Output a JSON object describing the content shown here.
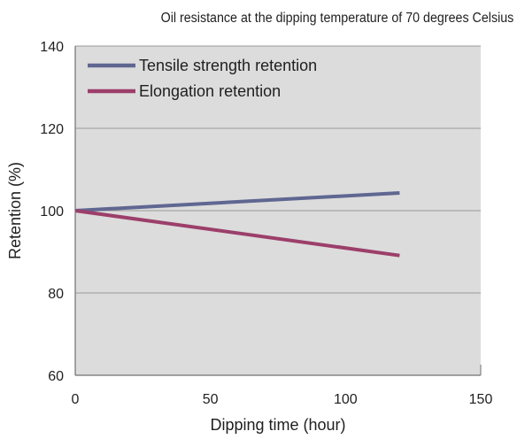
{
  "chart_data": {
    "type": "line",
    "title": "Oil resistance at the dipping temperature of 70 degrees Celsius",
    "xlabel": "Dipping time (hour)",
    "ylabel": "Retention (%)",
    "xlim": [
      0,
      150
    ],
    "ylim": [
      60,
      140
    ],
    "xticks": [
      0,
      50,
      100,
      150
    ],
    "yticks": [
      60,
      80,
      100,
      120,
      140
    ],
    "grid": "horizontal",
    "legend_position": "top-left",
    "background": "#dcdcdc",
    "series": [
      {
        "name": "Tensile strength retention",
        "color": "#5f6791",
        "x": [
          0,
          120
        ],
        "y": [
          100,
          104.3
        ]
      },
      {
        "name": "Elongation retention",
        "color": "#9c3f6a",
        "x": [
          0,
          120
        ],
        "y": [
          100,
          89.1
        ]
      }
    ]
  }
}
